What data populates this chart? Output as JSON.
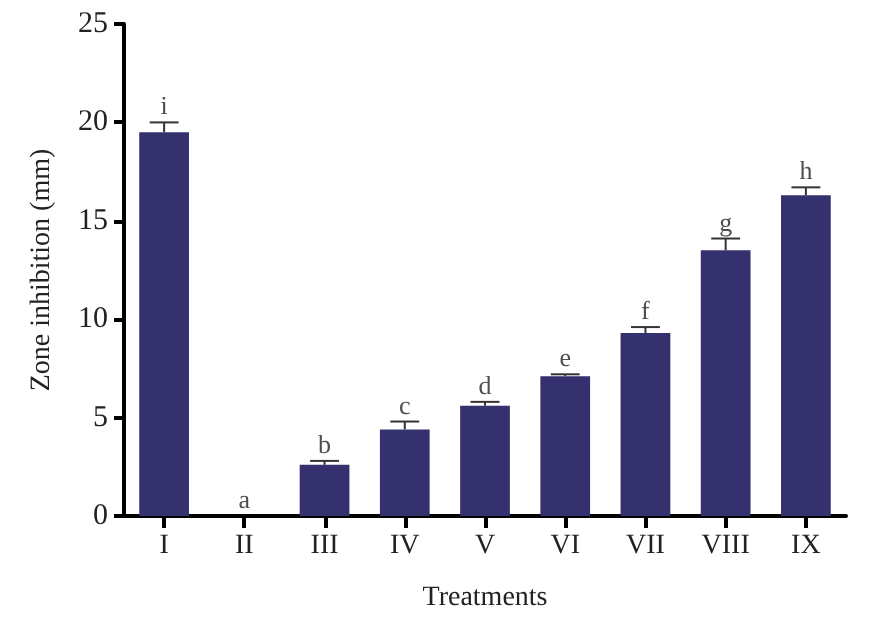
{
  "chart_data": {
    "type": "bar",
    "xlabel": "Treatments",
    "ylabel": "Zone inhibition (mm)",
    "categories": [
      "I",
      "II",
      "III",
      "IV",
      "V",
      "VI",
      "VII",
      "VIII",
      "IX"
    ],
    "values": [
      19.5,
      0,
      2.6,
      4.4,
      5.6,
      7.1,
      9.3,
      13.5,
      16.3
    ],
    "errors": [
      0.5,
      null,
      0.2,
      0.4,
      0.2,
      0.1,
      0.3,
      0.6,
      0.4
    ],
    "color": "#35306e",
    "ylim": [
      0,
      25
    ],
    "yticks": [
      0,
      5,
      10,
      15,
      20,
      25
    ],
    "grid": false,
    "annotations": [
      {
        "text": "i",
        "x": "I",
        "y": 20
      },
      {
        "text": "a",
        "x": "II",
        "y": 0
      },
      {
        "text": "b",
        "x": "III",
        "y": 2.8
      },
      {
        "text": "c",
        "x": "IV",
        "y": 4.8
      },
      {
        "text": "d",
        "x": "V",
        "y": 5.8
      },
      {
        "text": "e",
        "x": "VI",
        "y": 7.2
      },
      {
        "text": "f",
        "x": "VII",
        "y": 9.6
      },
      {
        "text": "g",
        "x": "VIII",
        "y": 14.1
      },
      {
        "text": "h",
        "x": "IX",
        "y": 16.7
      }
    ]
  }
}
